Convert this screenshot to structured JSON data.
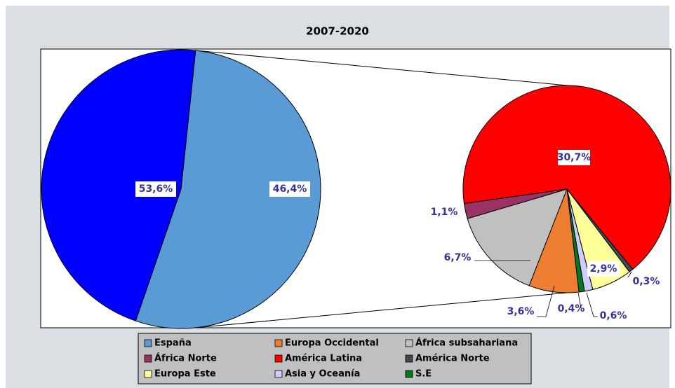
{
  "chart_data": {
    "type": "pie-of-pie",
    "title": "2007-2020",
    "main": {
      "categories": [
        "España",
        null
      ],
      "values": [
        53.6,
        46.4
      ],
      "value_labels": [
        "53,6%",
        "46,4%"
      ],
      "colors": [
        "#5b9bd5",
        "#0000ff"
      ]
    },
    "detail": {
      "categories": [
        "América Latina",
        "América Norte",
        "Europa Este",
        "Asia y Oceanía",
        "S.E",
        "Europa Occidental",
        "África subsahariana",
        "África Norte"
      ],
      "values": [
        30.7,
        0.3,
        2.9,
        0.6,
        0.4,
        3.6,
        6.7,
        1.1
      ],
      "value_labels": [
        "30,7%",
        "0,3%",
        "2,9%",
        "0,6%",
        "0,4%",
        "3,6%",
        "6,7%",
        "1,1%"
      ],
      "colors": [
        "#ff0000",
        "#404a55",
        "#ffff99",
        "#ccccff",
        "#007a1c",
        "#ed7d31",
        "#c0c0c0",
        "#993366"
      ]
    },
    "legend": "bottom"
  }
}
